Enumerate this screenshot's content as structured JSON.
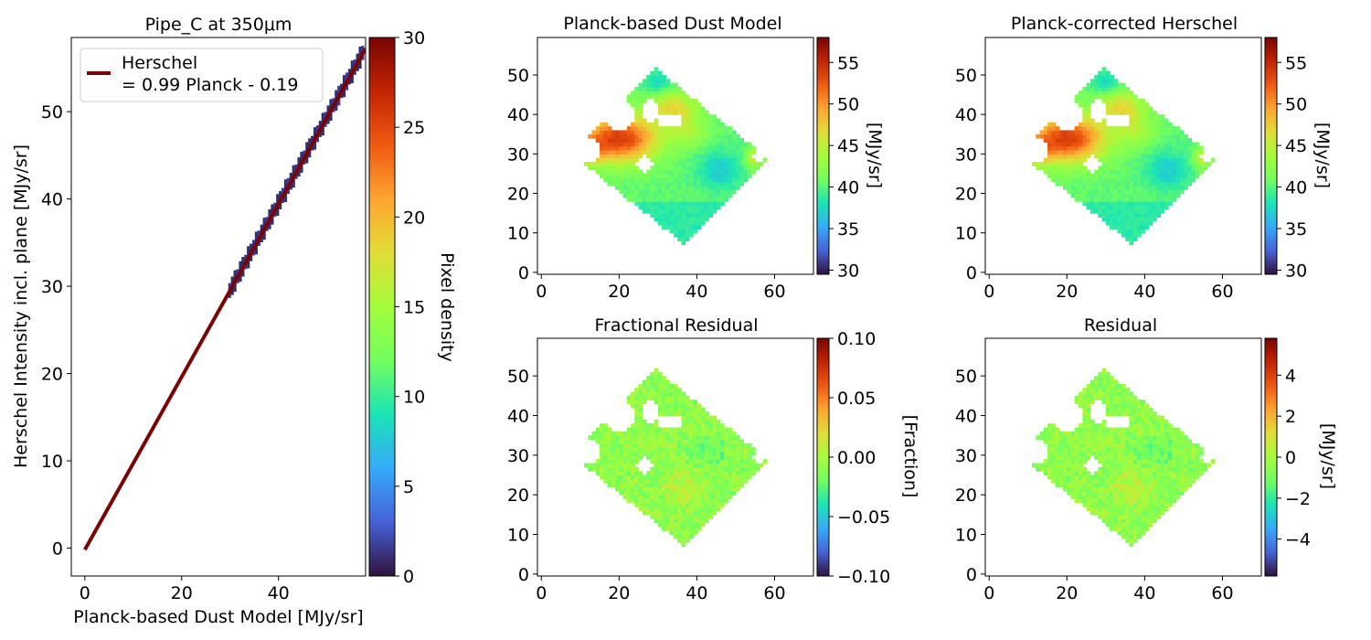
{
  "chart_data": [
    {
      "id": "scatter",
      "type": "heatmap",
      "title": "Pipe_C at 350μm",
      "xlabel": "Planck-based Dust Model [MJy/sr]",
      "ylabel": "Herschel Intensity incl. plane [MJy/sr]",
      "xlim": [
        -2.8,
        58
      ],
      "ylim": [
        -3.2,
        58.5
      ],
      "xticks": [
        0,
        20,
        40
      ],
      "yticks": [
        0,
        10,
        20,
        30,
        40,
        50
      ],
      "fit": {
        "slope": 0.99,
        "intercept": -0.19,
        "x_range": [
          0,
          58
        ]
      },
      "density_band": {
        "x_range": [
          30,
          57.5
        ],
        "width": 0.8
      },
      "legend": {
        "label_line1": "Herschel",
        "label_line2": "= 0.99 Planck - 0.19",
        "position": "upper-left",
        "color": "#7a0403"
      },
      "colorbar": {
        "label": "Pixel density",
        "min": 0,
        "max": 30,
        "ticks": [
          0,
          5,
          10,
          15,
          20,
          25,
          30
        ]
      }
    },
    {
      "id": "model",
      "type": "heatmap",
      "title": "Planck-based Dust Model",
      "xlim": [
        -1,
        70
      ],
      "ylim": [
        -0.5,
        59.5
      ],
      "xticks": [
        0,
        20,
        40,
        60
      ],
      "yticks": [
        0,
        10,
        20,
        30,
        40,
        50
      ],
      "colorbar": {
        "label": "[MJy/sr]",
        "min": 29.5,
        "max": 58,
        "ticks": [
          30,
          35,
          40,
          45,
          50,
          55
        ]
      }
    },
    {
      "id": "corrected",
      "type": "heatmap",
      "title": "Planck-corrected Herschel",
      "xlim": [
        -1,
        70
      ],
      "ylim": [
        -0.5,
        59.5
      ],
      "xticks": [
        0,
        20,
        40,
        60
      ],
      "yticks": [
        0,
        10,
        20,
        30,
        40,
        50
      ],
      "colorbar": {
        "label": "[MJy/sr]",
        "min": 29.5,
        "max": 58,
        "ticks": [
          30,
          35,
          40,
          45,
          50,
          55
        ]
      }
    },
    {
      "id": "fracres",
      "type": "heatmap",
      "title": "Fractional Residual",
      "xlim": [
        -1,
        70
      ],
      "ylim": [
        -0.5,
        59.5
      ],
      "xticks": [
        0,
        20,
        40,
        60
      ],
      "yticks": [
        0,
        10,
        20,
        30,
        40,
        50
      ],
      "colorbar": {
        "label": "[Fraction]",
        "min": -0.1,
        "max": 0.1,
        "ticks": [
          -0.1,
          -0.05,
          0.0,
          0.05,
          0.1
        ],
        "tick_labels": [
          "−0.10",
          "−0.05",
          "0.00",
          "0.05",
          "0.10"
        ]
      }
    },
    {
      "id": "residual",
      "type": "heatmap",
      "title": "Residual",
      "xlim": [
        -1,
        70
      ],
      "ylim": [
        -0.5,
        59.5
      ],
      "xticks": [
        0,
        20,
        40,
        60
      ],
      "yticks": [
        0,
        10,
        20,
        30,
        40,
        50
      ],
      "colorbar": {
        "label": "[MJy/sr]",
        "min": -5.8,
        "max": 5.8,
        "ticks": [
          -4,
          -2,
          0,
          2,
          4
        ],
        "tick_labels": [
          "−4",
          "−2",
          "0",
          "2",
          "4"
        ]
      }
    }
  ],
  "map_footprint": {
    "diamond_vertices": [
      [
        8,
        30
      ],
      [
        29,
        52
      ],
      [
        58,
        29
      ],
      [
        37,
        7
      ]
    ],
    "holes": [
      {
        "center": [
          11.5,
          31
        ],
        "rx": 3.5,
        "ry": 3.3
      },
      {
        "center": [
          20,
          40
        ],
        "rx": 4.3,
        "ry": 4.0
      },
      {
        "center": [
          28,
          41
        ],
        "rx": 2.2,
        "ry": 3.0
      },
      {
        "center": [
          33,
          38.5
        ],
        "rx": 3.2,
        "ry": 2.0
      },
      {
        "center": [
          26.5,
          27.5
        ],
        "rx": 2.2,
        "ry": 2.2
      },
      {
        "center": [
          56,
          29.5
        ],
        "rx": 1.8,
        "ry": 1.8
      }
    ]
  }
}
